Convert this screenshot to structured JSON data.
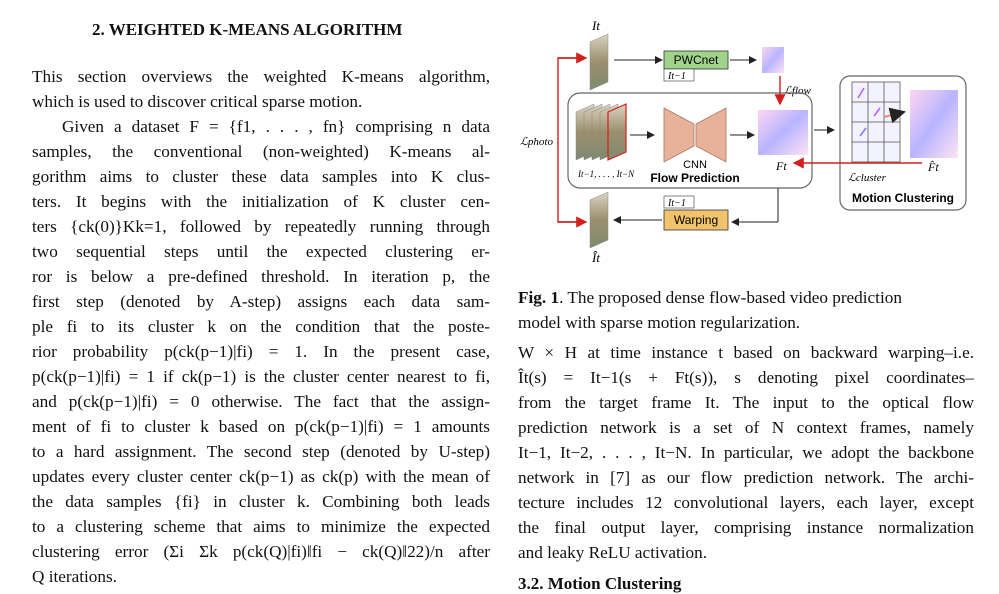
{
  "section": {
    "heading": "2. WEIGHTED K-MEANS ALGORITHM"
  },
  "left_paragraphs": {
    "p1": [
      "This section overviews the weighted K-means algorithm,",
      "which is used to discover critical sparse motion."
    ],
    "p2": [
      "Given a dataset F = {f1, . . . , fn} comprising n data",
      "samples, the conventional (non-weighted) K-means al-",
      "gorithm aims to cluster these data samples into K clus-",
      "ters.  It begins with the initialization of K cluster cen-",
      "ters {ck(0)}Kk=1, followed by repeatedly running through",
      "two sequential steps until the expected clustering er-",
      "ror is below a pre-defined threshold.  In iteration p, the",
      "first step (denoted by A-step) assigns each data sam-",
      "ple fi to its cluster k on the condition that the poste-",
      "rior probability p(ck(p−1)|fi)  =  1.  In the present case,",
      "p(ck(p−1)|fi) = 1 if ck(p−1) is the cluster center nearest to fi,",
      "and p(ck(p−1)|fi) = 0 otherwise. The fact that the assign-",
      "ment of fi to cluster k based on p(ck(p−1)|fi) = 1 amounts",
      "to a hard assignment. The second step (denoted by U-step)",
      "updates every cluster center ck(p−1) as ck(p) with the mean of",
      "the data samples {fi} in cluster k. Combining both leads",
      "to a clustering scheme that aims to minimize the expected",
      "clustering error (Σi Σk p(ck(Q)|fi)‖fi − ck(Q)‖22)/n after",
      "Q iterations."
    ]
  },
  "figure": {
    "label_It": "It",
    "label_It_hat": "Ît",
    "label_It1_top": "It−1",
    "label_It1_bottom": "It−1",
    "pwcnet": "PWCnet",
    "warping": "Warping",
    "cnn": "CNN",
    "flow_prediction": "Flow Prediction",
    "frames_label": "It−1, . . . , It−N",
    "Ft": "Ft",
    "Ft_hat": "F̂t",
    "L_flow": "ℒflow",
    "L_photo": "ℒphoto",
    "L_cluster": "ℒcluster",
    "motion_clustering": "Motion Clustering"
  },
  "caption": {
    "label": "Fig. 1",
    "text_l1": ". The proposed dense flow-based video prediction",
    "text_l2": "model with sparse motion regularization."
  },
  "right_paragraph": [
    "W × H at time instance t based on backward warping–i.e.",
    "Ît(s)  =  It−1(s + Ft(s)),  s denoting pixel coordinates–",
    "from the target frame It.  The input to the optical flow",
    "prediction network is a set of N context frames, namely",
    "It−1, It−2, . . . , It−N. In particular, we adopt the backbone",
    "network in [7] as our flow prediction network. The archi-",
    "tecture includes 12 convolutional layers, each layer, except",
    "the final output layer, comprising instance normalization",
    "and leaky ReLU activation."
  ],
  "next_heading": "3.2. Motion Clustering"
}
